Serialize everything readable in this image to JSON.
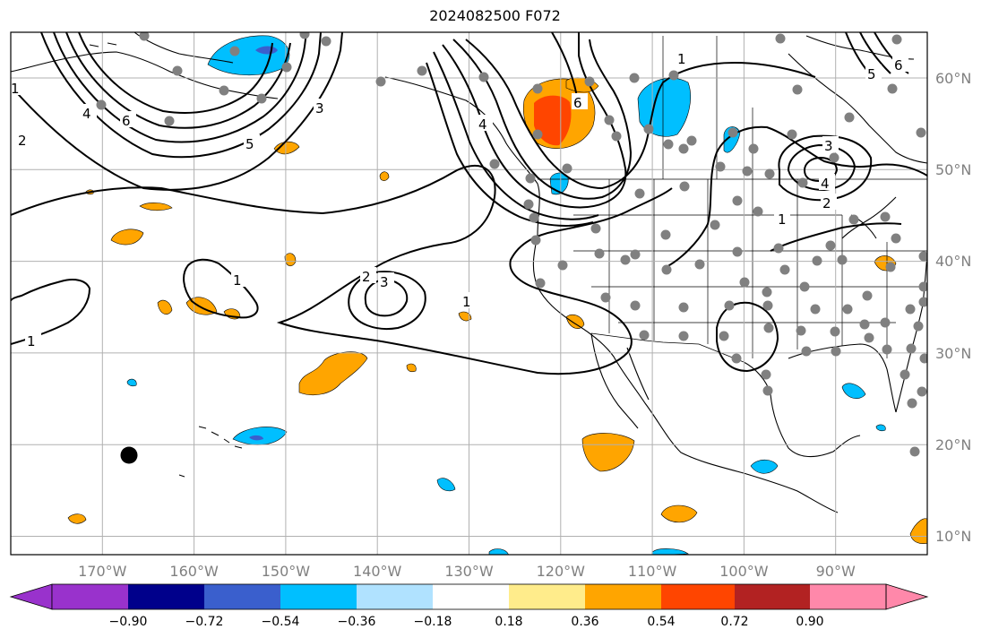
{
  "title": "2024082500 F072",
  "map": {
    "lon_range": [
      -180,
      -80
    ],
    "lat_range": [
      8,
      65
    ],
    "lon_ticks": [
      -170,
      -160,
      -150,
      -140,
      -130,
      -120,
      -110,
      -100,
      -90
    ],
    "lat_ticks": [
      10,
      20,
      30,
      40,
      50,
      60
    ],
    "lon_labels": [
      "170°W",
      "160°W",
      "150°W",
      "140°W",
      "130°W",
      "120°W",
      "110°W",
      "100°W",
      "90°W"
    ],
    "lat_labels": [
      "10°N",
      "20°N",
      "30°N",
      "40°N",
      "50°N",
      "60°N"
    ],
    "contour_labels": [
      "1",
      "1",
      "1",
      "1",
      "1",
      "1",
      "2",
      "2",
      "2",
      "3",
      "3",
      "3",
      "4",
      "4",
      "5",
      "6",
      "6",
      "6",
      "4",
      "5"
    ]
  },
  "colorbar": {
    "ticks": [
      "−0.90",
      "−0.72",
      "−0.54",
      "−0.36",
      "−0.18",
      "0.18",
      "0.36",
      "0.54",
      "0.72",
      "0.90"
    ],
    "colors": [
      "#9932cc",
      "#00008b",
      "#3a5fcd",
      "#00bfff",
      "#b0e2ff",
      "#ffffff",
      "#ffec8b",
      "#ffa500",
      "#ff4500",
      "#b22222",
      "#ff88aa"
    ]
  },
  "colors": {
    "grid": "#b0b0b0",
    "station": "#808080",
    "land": "#000000"
  }
}
